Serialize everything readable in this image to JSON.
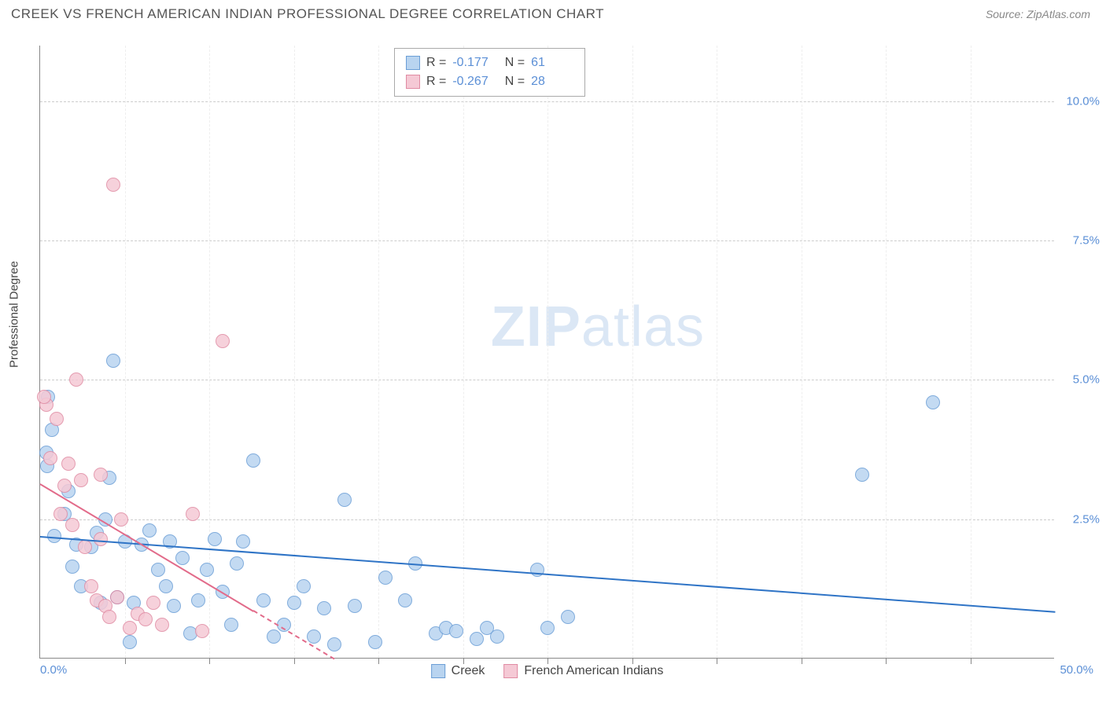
{
  "title": "CREEK VS FRENCH AMERICAN INDIAN PROFESSIONAL DEGREE CORRELATION CHART",
  "source": "Source: ZipAtlas.com",
  "ylabel": "Professional Degree",
  "watermark_bold": "ZIP",
  "watermark_rest": "atlas",
  "chart": {
    "type": "scatter",
    "xlim": [
      0,
      50
    ],
    "ylim": [
      0,
      11
    ],
    "x_tick_step": 4.1667,
    "y_gridlines": [
      2.5,
      5.0,
      7.5,
      10.0
    ],
    "y_tick_labels": [
      "2.5%",
      "5.0%",
      "7.5%",
      "10.0%"
    ],
    "x_min_label": "0.0%",
    "x_max_label": "50.0%",
    "background_color": "#ffffff",
    "grid_color": "#cccccc",
    "axis_color": "#888888",
    "label_color": "#5b8fd6",
    "point_radius": 9,
    "point_border": 1,
    "series": [
      {
        "name": "Creek",
        "fill": "#b9d4f0",
        "stroke": "#6b9ed6",
        "trend_color": "#2f74c6",
        "trend": {
          "x1": 0,
          "y1": 2.2,
          "x2": 50,
          "y2": 0.85,
          "dashed": false
        },
        "R": "-0.177",
        "N": "61",
        "points": [
          [
            0.3,
            3.7
          ],
          [
            0.4,
            4.7
          ],
          [
            0.35,
            3.45
          ],
          [
            0.6,
            4.1
          ],
          [
            1.2,
            2.6
          ],
          [
            1.4,
            3.0
          ],
          [
            1.6,
            1.65
          ],
          [
            1.8,
            2.05
          ],
          [
            2.0,
            1.3
          ],
          [
            2.5,
            2.0
          ],
          [
            2.8,
            2.25
          ],
          [
            3.0,
            1.0
          ],
          [
            3.2,
            2.5
          ],
          [
            3.4,
            3.25
          ],
          [
            3.6,
            5.35
          ],
          [
            3.8,
            1.1
          ],
          [
            4.2,
            2.1
          ],
          [
            4.6,
            1.0
          ],
          [
            5.0,
            2.05
          ],
          [
            5.4,
            2.3
          ],
          [
            5.8,
            1.6
          ],
          [
            6.2,
            1.3
          ],
          [
            6.6,
            0.95
          ],
          [
            6.4,
            2.1
          ],
          [
            7.0,
            1.8
          ],
          [
            7.4,
            0.45
          ],
          [
            7.8,
            1.05
          ],
          [
            8.2,
            1.6
          ],
          [
            8.6,
            2.15
          ],
          [
            9.0,
            1.2
          ],
          [
            9.4,
            0.6
          ],
          [
            9.7,
            1.7
          ],
          [
            10.0,
            2.1
          ],
          [
            10.5,
            3.55
          ],
          [
            11.0,
            1.05
          ],
          [
            11.5,
            0.4
          ],
          [
            12.0,
            0.6
          ],
          [
            12.5,
            1.0
          ],
          [
            13.0,
            1.3
          ],
          [
            13.5,
            0.4
          ],
          [
            14.0,
            0.9
          ],
          [
            14.5,
            0.25
          ],
          [
            15.0,
            2.85
          ],
          [
            15.5,
            0.95
          ],
          [
            16.5,
            0.3
          ],
          [
            17.0,
            1.45
          ],
          [
            18.0,
            1.05
          ],
          [
            18.5,
            1.7
          ],
          [
            19.5,
            0.45
          ],
          [
            20.0,
            0.55
          ],
          [
            20.5,
            0.5
          ],
          [
            21.5,
            0.35
          ],
          [
            22.0,
            0.55
          ],
          [
            22.5,
            0.4
          ],
          [
            24.5,
            1.6
          ],
          [
            25.0,
            0.55
          ],
          [
            26.0,
            0.75
          ],
          [
            40.5,
            3.3
          ],
          [
            44.0,
            4.6
          ],
          [
            4.4,
            0.3
          ],
          [
            0.7,
            2.2
          ]
        ]
      },
      {
        "name": "French American Indians",
        "fill": "#f5c9d5",
        "stroke": "#e08ba3",
        "trend_color": "#e26b8a",
        "trend": {
          "x1": 0,
          "y1": 3.15,
          "x2": 14.5,
          "y2": 0,
          "dashed_after": 10.5
        },
        "R": "-0.267",
        "N": "28",
        "points": [
          [
            0.3,
            4.55
          ],
          [
            0.2,
            4.7
          ],
          [
            0.5,
            3.6
          ],
          [
            0.8,
            4.3
          ],
          [
            1.0,
            2.6
          ],
          [
            1.2,
            3.1
          ],
          [
            1.4,
            3.5
          ],
          [
            1.6,
            2.4
          ],
          [
            1.8,
            5.0
          ],
          [
            2.0,
            3.2
          ],
          [
            2.2,
            2.0
          ],
          [
            2.5,
            1.3
          ],
          [
            2.8,
            1.05
          ],
          [
            3.0,
            2.15
          ],
          [
            3.2,
            0.95
          ],
          [
            3.4,
            0.75
          ],
          [
            3.6,
            8.5
          ],
          [
            3.8,
            1.1
          ],
          [
            4.0,
            2.5
          ],
          [
            4.4,
            0.55
          ],
          [
            4.8,
            0.8
          ],
          [
            5.2,
            0.7
          ],
          [
            5.6,
            1.0
          ],
          [
            6.0,
            0.6
          ],
          [
            7.5,
            2.6
          ],
          [
            8.0,
            0.5
          ],
          [
            9.0,
            5.7
          ],
          [
            3.0,
            3.3
          ]
        ]
      }
    ]
  }
}
